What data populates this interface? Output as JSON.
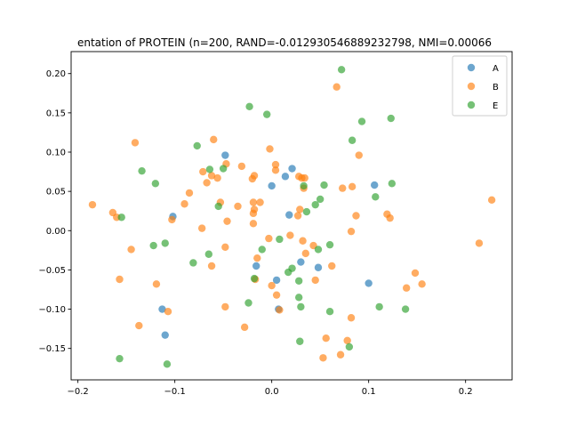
{
  "chart_data": {
    "type": "scatter",
    "title": "entation of PROTEIN (n=200, RAND=-0.012930546889232798, NMI=0.00066",
    "xlabel": "",
    "ylabel": "",
    "xlim": [
      -0.207,
      0.248
    ],
    "ylim": [
      -0.19,
      0.228
    ],
    "xticks": [
      -0.2,
      -0.1,
      0.0,
      0.1,
      0.2
    ],
    "xtick_labels": [
      "−0.2",
      "−0.1",
      "0.0",
      "0.1",
      "0.2"
    ],
    "yticks": [
      -0.15,
      -0.1,
      -0.05,
      0.0,
      0.05,
      0.1,
      0.15,
      0.2
    ],
    "ytick_labels": [
      "−0.15",
      "−0.10",
      "−0.05",
      "0.00",
      "0.05",
      "0.10",
      "0.15",
      "0.20"
    ],
    "grid": false,
    "legend_position": "top-right",
    "series": [
      {
        "name": "A",
        "color": "#1f77b4",
        "points": [
          [
            -0.102,
            0.018
          ],
          [
            -0.048,
            0.096
          ],
          [
            0.0,
            0.057
          ],
          [
            0.014,
            0.069
          ],
          [
            0.021,
            0.079
          ],
          [
            0.018,
            0.02
          ],
          [
            0.106,
            0.058
          ],
          [
            -0.016,
            -0.045
          ],
          [
            0.03,
            -0.04
          ],
          [
            0.048,
            -0.047
          ],
          [
            0.005,
            -0.063
          ],
          [
            0.007,
            -0.1
          ],
          [
            -0.113,
            -0.1
          ],
          [
            -0.11,
            -0.133
          ],
          [
            0.1,
            -0.067
          ]
        ]
      },
      {
        "name": "B",
        "color": "#ff7f0e",
        "points": [
          [
            0.067,
            0.183
          ],
          [
            -0.141,
            0.112
          ],
          [
            -0.06,
            0.116
          ],
          [
            -0.002,
            0.104
          ],
          [
            -0.047,
            0.085
          ],
          [
            -0.031,
            0.082
          ],
          [
            0.004,
            0.084
          ],
          [
            0.004,
            0.077
          ],
          [
            -0.071,
            0.075
          ],
          [
            -0.062,
            0.07
          ],
          [
            -0.056,
            0.067
          ],
          [
            -0.067,
            0.061
          ],
          [
            -0.02,
            0.066
          ],
          [
            -0.018,
            0.07
          ],
          [
            0.028,
            0.069
          ],
          [
            0.031,
            0.067
          ],
          [
            0.034,
            0.067
          ],
          [
            0.033,
            0.054
          ],
          [
            0.09,
            0.096
          ],
          [
            0.083,
            0.056
          ],
          [
            0.073,
            0.054
          ],
          [
            -0.085,
            0.048
          ],
          [
            -0.09,
            0.034
          ],
          [
            -0.053,
            0.036
          ],
          [
            -0.035,
            0.031
          ],
          [
            -0.019,
            0.036
          ],
          [
            -0.012,
            0.036
          ],
          [
            -0.018,
            0.027
          ],
          [
            -0.019,
            0.022
          ],
          [
            0.029,
            0.027
          ],
          [
            0.027,
            0.019
          ],
          [
            -0.185,
            0.033
          ],
          [
            -0.164,
            0.023
          ],
          [
            -0.16,
            0.017
          ],
          [
            -0.103,
            0.014
          ],
          [
            -0.046,
            0.012
          ],
          [
            -0.072,
            0.003
          ],
          [
            -0.019,
            0.009
          ],
          [
            -0.003,
            -0.01
          ],
          [
            0.019,
            -0.006
          ],
          [
            0.032,
            -0.013
          ],
          [
            0.043,
            -0.019
          ],
          [
            0.035,
            -0.029
          ],
          [
            0.087,
            0.019
          ],
          [
            0.119,
            0.021
          ],
          [
            0.122,
            0.016
          ],
          [
            0.227,
            0.039
          ],
          [
            0.082,
            -0.001
          ],
          [
            -0.145,
            -0.024
          ],
          [
            -0.048,
            -0.021
          ],
          [
            -0.015,
            -0.035
          ],
          [
            -0.062,
            -0.045
          ],
          [
            0.062,
            -0.045
          ],
          [
            0.148,
            -0.054
          ],
          [
            0.155,
            -0.068
          ],
          [
            0.139,
            -0.073
          ],
          [
            -0.157,
            -0.062
          ],
          [
            -0.119,
            -0.068
          ],
          [
            -0.017,
            -0.062
          ],
          [
            0.0,
            -0.07
          ],
          [
            0.005,
            -0.082
          ],
          [
            0.045,
            -0.063
          ],
          [
            -0.048,
            -0.097
          ],
          [
            0.008,
            -0.101
          ],
          [
            -0.107,
            -0.103
          ],
          [
            0.082,
            -0.111
          ],
          [
            -0.137,
            -0.121
          ],
          [
            -0.028,
            -0.123
          ],
          [
            0.056,
            -0.137
          ],
          [
            0.078,
            -0.14
          ],
          [
            0.053,
            -0.162
          ],
          [
            0.071,
            -0.158
          ],
          [
            0.214,
            -0.016
          ]
        ]
      },
      {
        "name": "E",
        "color": "#2ca02c",
        "points": [
          [
            0.072,
            0.205
          ],
          [
            -0.023,
            0.158
          ],
          [
            -0.005,
            0.148
          ],
          [
            0.123,
            0.143
          ],
          [
            0.093,
            0.139
          ],
          [
            0.083,
            0.115
          ],
          [
            -0.077,
            0.108
          ],
          [
            -0.134,
            0.076
          ],
          [
            -0.064,
            0.078
          ],
          [
            -0.05,
            0.079
          ],
          [
            -0.12,
            0.06
          ],
          [
            0.033,
            0.057
          ],
          [
            0.054,
            0.058
          ],
          [
            0.124,
            0.06
          ],
          [
            0.107,
            0.043
          ],
          [
            0.05,
            0.04
          ],
          [
            0.045,
            0.033
          ],
          [
            0.036,
            0.024
          ],
          [
            -0.055,
            0.031
          ],
          [
            -0.155,
            0.017
          ],
          [
            -0.11,
            -0.016
          ],
          [
            -0.122,
            -0.019
          ],
          [
            -0.01,
            -0.024
          ],
          [
            0.008,
            -0.011
          ],
          [
            0.048,
            -0.024
          ],
          [
            0.06,
            -0.018
          ],
          [
            -0.065,
            -0.03
          ],
          [
            -0.081,
            -0.041
          ],
          [
            0.021,
            -0.048
          ],
          [
            0.017,
            -0.053
          ],
          [
            -0.018,
            -0.061
          ],
          [
            0.028,
            -0.064
          ],
          [
            0.028,
            -0.085
          ],
          [
            -0.024,
            -0.092
          ],
          [
            0.03,
            -0.097
          ],
          [
            0.06,
            -0.103
          ],
          [
            0.111,
            -0.097
          ],
          [
            0.138,
            -0.1
          ],
          [
            0.08,
            -0.148
          ],
          [
            0.029,
            -0.141
          ],
          [
            -0.157,
            -0.163
          ],
          [
            -0.108,
            -0.17
          ]
        ]
      }
    ]
  }
}
